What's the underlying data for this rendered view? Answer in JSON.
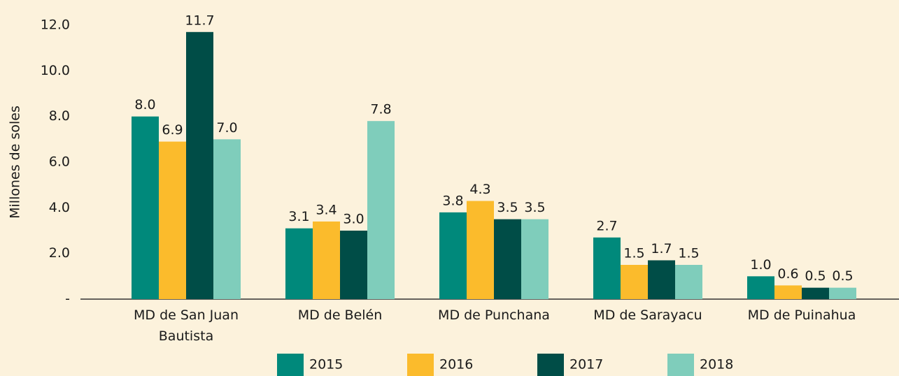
{
  "chart_data": {
    "type": "bar",
    "y_axis_label": "Millones de soles",
    "categories": [
      "MD de San Juan Bautista",
      "MD de Belén",
      "MD de Punchana",
      "MD de Sarayacu",
      "MD de Puinahua"
    ],
    "series": [
      {
        "name": "2015",
        "color": "#00897b",
        "values": [
          8.0,
          3.1,
          3.8,
          2.7,
          1.0
        ],
        "value_labels": [
          "8.0",
          "3.1",
          "3.8",
          "2.7",
          "1.0"
        ]
      },
      {
        "name": "2016",
        "color": "#fbbb2c",
        "values": [
          6.9,
          3.4,
          4.3,
          1.5,
          0.6
        ],
        "value_labels": [
          "6.9",
          "3.4",
          "4.3",
          "1.5",
          "0.6"
        ]
      },
      {
        "name": "2017",
        "color": "#004d47",
        "values": [
          11.7,
          3.0,
          3.5,
          1.7,
          0.5
        ],
        "value_labels": [
          "11.7",
          "3.0",
          "3.5",
          "1.7",
          "0.5"
        ]
      },
      {
        "name": "2018",
        "color": "#7fcdbb",
        "values": [
          7.0,
          7.8,
          3.5,
          1.5,
          0.5
        ],
        "value_labels": [
          "7.0",
          "7.8",
          "3.5",
          "1.5",
          "0.5"
        ]
      }
    ],
    "ylim": [
      0,
      12
    ],
    "yticks": [
      {
        "value": 0,
        "label": "-"
      },
      {
        "value": 2,
        "label": "2.0"
      },
      {
        "value": 4,
        "label": "4.0"
      },
      {
        "value": 6,
        "label": "6.0"
      },
      {
        "value": 8,
        "label": "8.0"
      },
      {
        "value": 10,
        "label": "10.0"
      },
      {
        "value": 12,
        "label": "12.0"
      }
    ],
    "grid": false,
    "legend": "bottom"
  }
}
